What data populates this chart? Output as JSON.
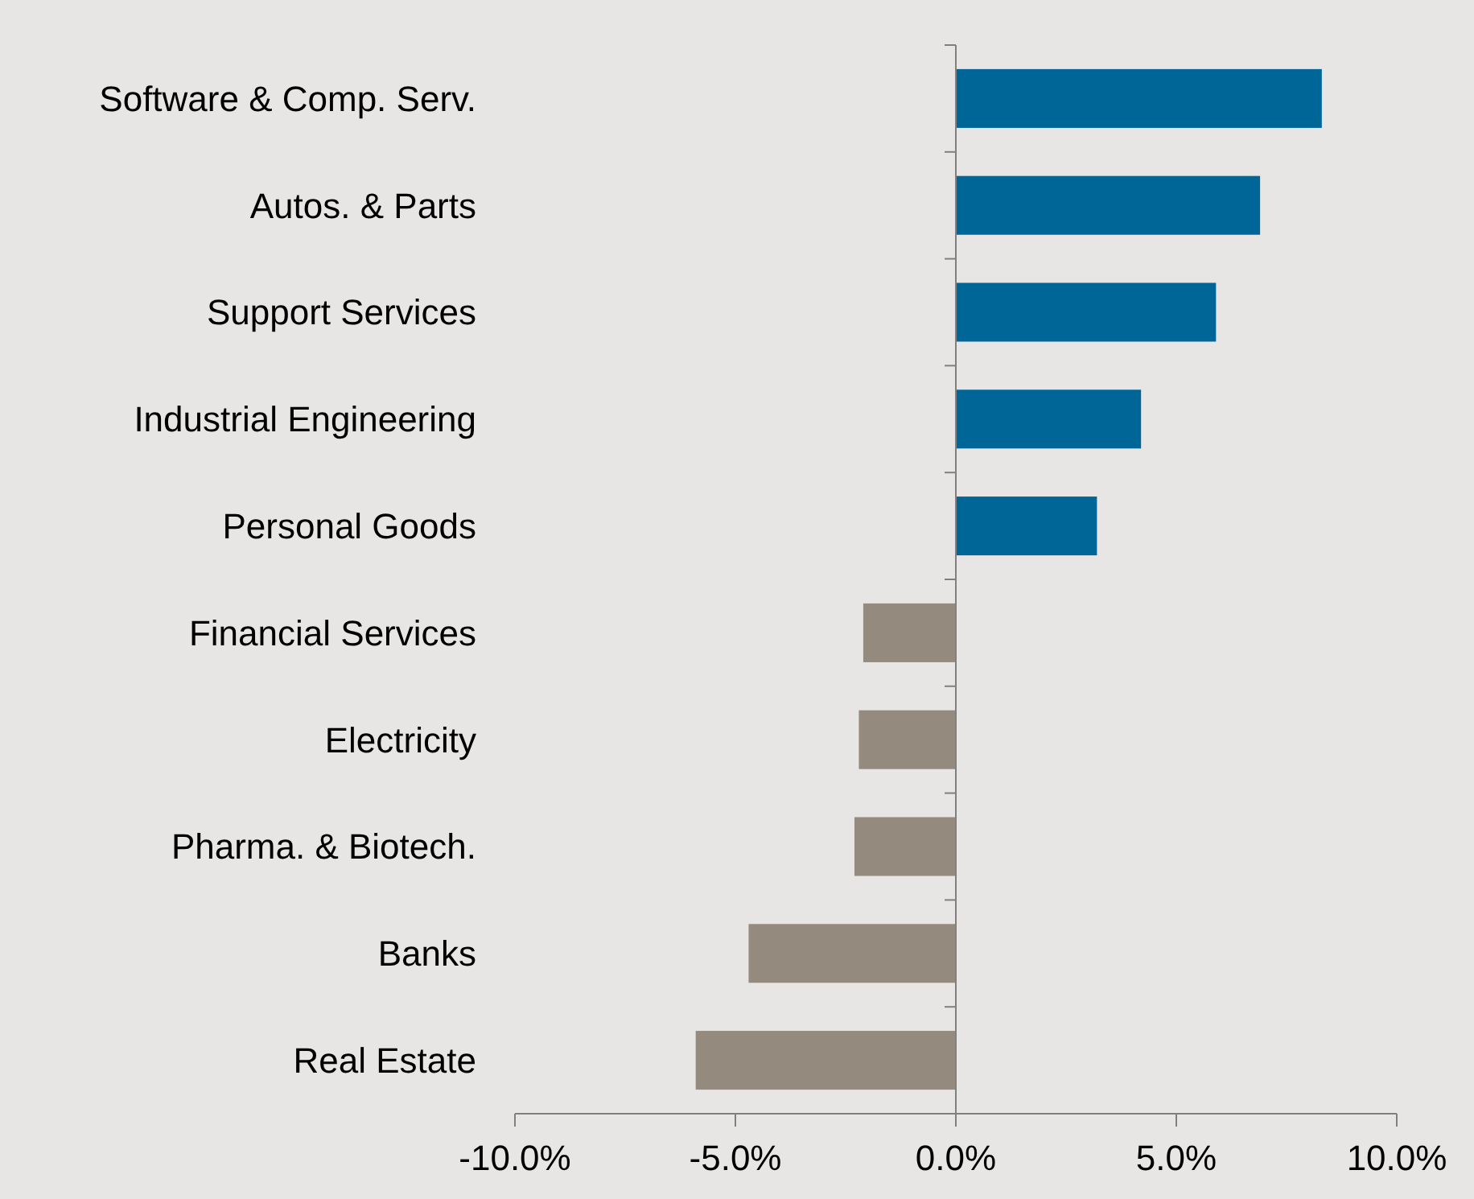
{
  "chart_data": {
    "type": "bar",
    "orientation": "horizontal",
    "categories": [
      "Software & Comp. Serv.",
      "Autos. & Parts",
      "Support Services",
      "Industrial Engineering",
      "Personal Goods",
      "Financial Services",
      "Electricity",
      "Pharma. & Biotech.",
      "Banks",
      "Real Estate"
    ],
    "values": [
      8.3,
      6.9,
      5.9,
      4.2,
      3.2,
      -2.1,
      -2.2,
      -2.3,
      -4.7,
      -5.9
    ],
    "colors": [
      "#006597",
      "#006597",
      "#006597",
      "#006597",
      "#006597",
      "#948a7e",
      "#948a7e",
      "#948a7e",
      "#948a7e",
      "#948a7e"
    ],
    "xlim": [
      -10,
      10
    ],
    "xticks": [
      {
        "value": -10,
        "label": "-10.0%"
      },
      {
        "value": -5,
        "label": "-5.0%"
      },
      {
        "value": 0,
        "label": "0.0%"
      },
      {
        "value": 5,
        "label": "5.0%"
      },
      {
        "value": 10,
        "label": "10.0%"
      }
    ],
    "tick_labels": true
  }
}
